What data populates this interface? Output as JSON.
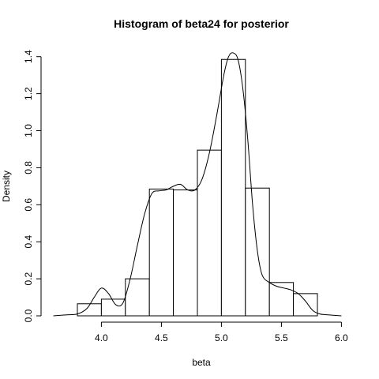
{
  "chart_data": {
    "type": "bar",
    "title": "Histogram of beta24 for posterior",
    "xlabel": "beta",
    "ylabel": "Density",
    "xlim": [
      3.55,
      6.05
    ],
    "ylim": [
      0,
      1.45
    ],
    "x_ticks": [
      4.0,
      4.5,
      5.0,
      5.5,
      6.0
    ],
    "x_tick_labels": [
      "4.0",
      "4.5",
      "5.0",
      "5.5",
      "6.0"
    ],
    "y_ticks": [
      0,
      0.2,
      0.4,
      0.6,
      0.8,
      1.0,
      1.2,
      1.4
    ],
    "y_tick_labels": [
      "0.0",
      "0.2",
      "0.4",
      "0.6",
      "0.8",
      "1.0",
      "1.2",
      "1.4"
    ],
    "grid": false,
    "bins": [
      {
        "x0": 3.8,
        "x1": 4.0,
        "density": 0.065
      },
      {
        "x0": 4.0,
        "x1": 4.2,
        "density": 0.09
      },
      {
        "x0": 4.2,
        "x1": 4.4,
        "density": 0.2
      },
      {
        "x0": 4.4,
        "x1": 4.6,
        "density": 0.685
      },
      {
        "x0": 4.6,
        "x1": 4.8,
        "density": 0.68
      },
      {
        "x0": 4.8,
        "x1": 5.0,
        "density": 0.895
      },
      {
        "x0": 5.0,
        "x1": 5.2,
        "density": 1.385
      },
      {
        "x0": 5.2,
        "x1": 5.4,
        "density": 0.69
      },
      {
        "x0": 5.4,
        "x1": 5.6,
        "density": 0.18
      },
      {
        "x0": 5.6,
        "x1": 5.8,
        "density": 0.12
      }
    ],
    "density_curve": {
      "x": [
        3.6,
        3.7,
        3.8,
        3.88,
        3.94,
        4.0,
        4.06,
        4.12,
        4.18,
        4.24,
        4.3,
        4.36,
        4.42,
        4.48,
        4.54,
        4.6,
        4.66,
        4.72,
        4.78,
        4.84,
        4.9,
        4.96,
        5.02,
        5.06,
        5.1,
        5.14,
        5.18,
        5.22,
        5.26,
        5.3,
        5.34,
        5.4,
        5.46,
        5.52,
        5.58,
        5.64,
        5.7,
        5.76,
        5.82,
        5.9,
        6.0
      ],
      "y": [
        0.0,
        0.005,
        0.01,
        0.04,
        0.1,
        0.15,
        0.12,
        0.06,
        0.07,
        0.2,
        0.38,
        0.55,
        0.66,
        0.675,
        0.68,
        0.7,
        0.71,
        0.68,
        0.68,
        0.74,
        0.88,
        1.08,
        1.3,
        1.4,
        1.42,
        1.38,
        1.22,
        0.95,
        0.6,
        0.35,
        0.22,
        0.18,
        0.16,
        0.15,
        0.14,
        0.12,
        0.08,
        0.03,
        0.01,
        0.005,
        0.0
      ]
    }
  }
}
